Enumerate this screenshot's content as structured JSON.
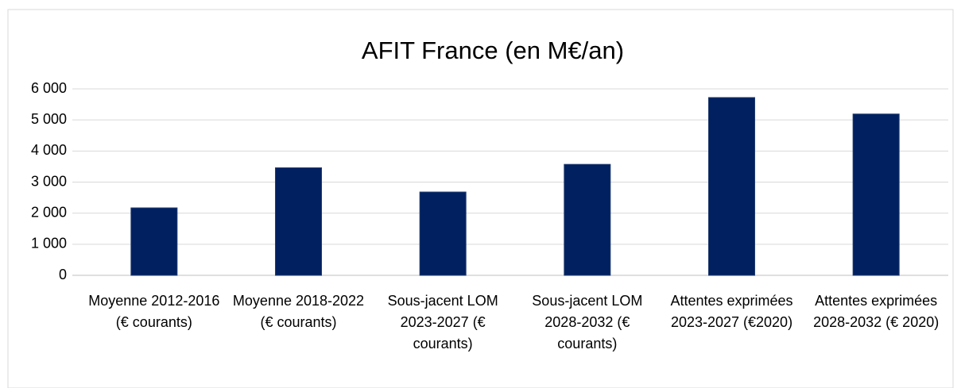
{
  "chart_data": {
    "type": "bar",
    "title": "AFIT France (en M€/an)",
    "categories": [
      "Moyenne 2012-2016 (€ courants)",
      "Moyenne 2018-2022 (€ courants)",
      "Sous-jacent LOM 2023-2027 (€ courants)",
      "Sous-jacent LOM 2028-2032 (€ courants)",
      "Attentes exprimées 2023-2027 (€2020)",
      "Attentes exprimées 2028-2032 (€ 2020)"
    ],
    "values": [
      2170,
      3460,
      2680,
      3570,
      5720,
      5190
    ],
    "color": "#002060",
    "ylim": [
      0,
      6000
    ],
    "yticks": [
      0,
      {
        "value": 1000,
        "label": "1 000"
      },
      {
        "value": 2000,
        "label": "2 000"
      },
      {
        "value": 3000,
        "label": "3 000"
      },
      {
        "value": 4000,
        "label": "4 000"
      },
      {
        "value": 5000,
        "label": "5 000"
      },
      {
        "value": 6000,
        "label": "6 000"
      }
    ],
    "grid": true
  }
}
